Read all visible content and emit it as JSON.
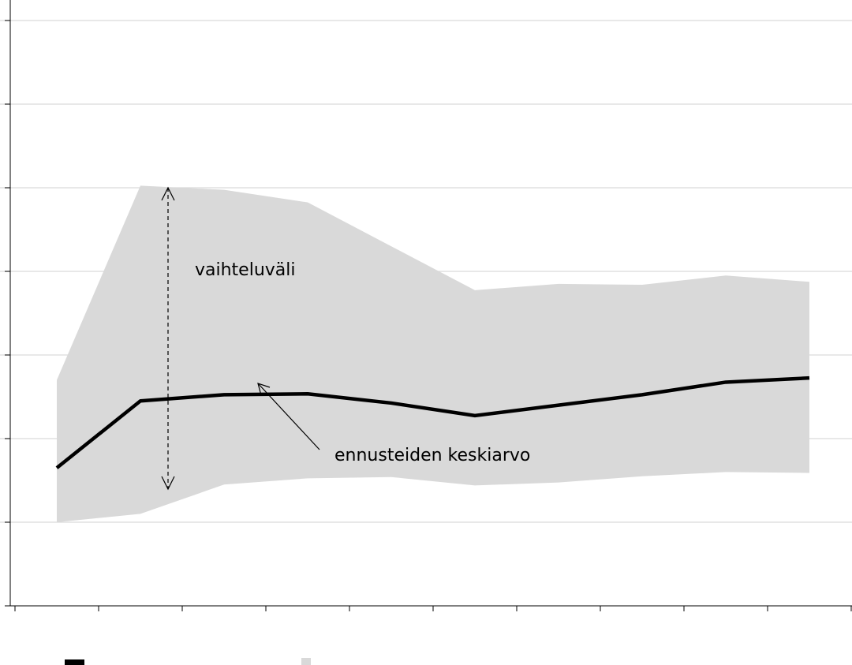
{
  "chart_data": {
    "type": "area",
    "categories": [
      "",
      "",
      "",
      "",
      "",
      "",
      "",
      "",
      "",
      ""
    ],
    "series": [
      {
        "values": [
          3.3,
          4.9,
          5.05,
          5.07,
          4.85,
          4.55,
          4.8,
          5.05,
          5.35,
          5.45
        ]
      },
      {
        "values": [
          2.0,
          2.2,
          2.9,
          3.05,
          3.08,
          2.88,
          2.95,
          3.1,
          3.2,
          3.18
        ]
      },
      {
        "values": [
          5.4,
          10.05,
          9.95,
          9.65,
          8.6,
          7.55,
          7.7,
          7.68,
          7.9,
          7.75
        ]
      }
    ],
    "ylim": [
      0,
      14
    ],
    "grid": true,
    "annotations": [
      {
        "text": "vaihteluväli"
      },
      {
        "text": "ennusteiden keskiarvo"
      }
    ],
    "legend": [
      {
        "label": "",
        "color": "#000000"
      },
      {
        "label": "",
        "color": "#d9d9d9"
      }
    ],
    "colors": {
      "mean_line": "#000000",
      "range_fill": "#d9d9d9",
      "grid": "#d9d9d9",
      "axis": "#000000"
    }
  }
}
